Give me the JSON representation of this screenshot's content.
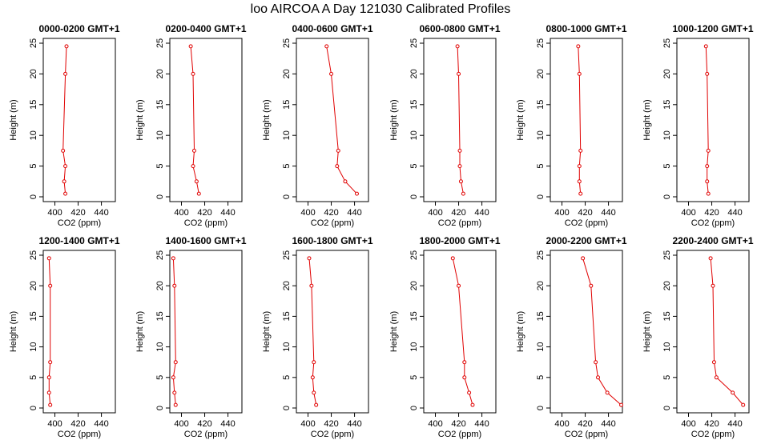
{
  "title": "loo AIRCOA A  Day 121030  Calibrated Profiles",
  "chart_data": [
    {
      "type": "line",
      "title": "0000-0200 GMT+1",
      "xlabel": "CO2 (ppm)",
      "ylabel": "Height (m)",
      "xlim": [
        390,
        452
      ],
      "ylim": [
        0,
        25
      ],
      "xticks": [
        400,
        420,
        440
      ],
      "yticks": [
        0,
        5,
        10,
        15,
        20,
        25
      ],
      "grid": false,
      "series": [
        {
          "color": "#e00000",
          "x": [
            409,
            408,
            409,
            407,
            409,
            410
          ],
          "y": [
            0.5,
            2.5,
            5,
            7.5,
            20,
            24.5
          ]
        }
      ]
    },
    {
      "type": "line",
      "title": "0200-0400 GMT+1",
      "xlabel": "CO2 (ppm)",
      "ylabel": "Height (m)",
      "xlim": [
        390,
        452
      ],
      "ylim": [
        0,
        25
      ],
      "xticks": [
        400,
        420,
        440
      ],
      "yticks": [
        0,
        5,
        10,
        15,
        20,
        25
      ],
      "grid": false,
      "series": [
        {
          "color": "#e00000",
          "x": [
            415,
            413,
            410,
            411,
            410,
            408
          ],
          "y": [
            0.5,
            2.5,
            5,
            7.5,
            20,
            24.5
          ]
        }
      ]
    },
    {
      "type": "line",
      "title": "0400-0600 GMT+1",
      "xlabel": "CO2 (ppm)",
      "ylabel": "Height (m)",
      "xlim": [
        390,
        452
      ],
      "ylim": [
        0,
        25
      ],
      "xticks": [
        400,
        420,
        440
      ],
      "yticks": [
        0,
        5,
        10,
        15,
        20,
        25
      ],
      "grid": false,
      "series": [
        {
          "color": "#e00000",
          "x": [
            442,
            432,
            425,
            426,
            420,
            416
          ],
          "y": [
            0.5,
            2.5,
            5,
            7.5,
            20,
            24.5
          ]
        }
      ]
    },
    {
      "type": "line",
      "title": "0600-0800 GMT+1",
      "xlabel": "CO2 (ppm)",
      "ylabel": "Height (m)",
      "xlim": [
        390,
        452
      ],
      "ylim": [
        0,
        25
      ],
      "xticks": [
        400,
        420,
        440
      ],
      "yticks": [
        0,
        5,
        10,
        15,
        20,
        25
      ],
      "grid": false,
      "series": [
        {
          "color": "#e00000",
          "x": [
            424,
            422,
            421,
            421,
            420,
            419
          ],
          "y": [
            0.5,
            2.5,
            5,
            7.5,
            20,
            24.5
          ]
        }
      ]
    },
    {
      "type": "line",
      "title": "0800-1000 GMT+1",
      "xlabel": "CO2 (ppm)",
      "ylabel": "Height (m)",
      "xlim": [
        390,
        452
      ],
      "ylim": [
        0,
        25
      ],
      "xticks": [
        400,
        420,
        440
      ],
      "yticks": [
        0,
        5,
        10,
        15,
        20,
        25
      ],
      "grid": false,
      "series": [
        {
          "color": "#e00000",
          "x": [
            416,
            415,
            415,
            416,
            415,
            414
          ],
          "y": [
            0.5,
            2.5,
            5,
            7.5,
            20,
            24.5
          ]
        }
      ]
    },
    {
      "type": "line",
      "title": "1000-1200 GMT+1",
      "xlabel": "CO2 (ppm)",
      "ylabel": "Height (m)",
      "xlim": [
        390,
        452
      ],
      "ylim": [
        0,
        25
      ],
      "xticks": [
        400,
        420,
        440
      ],
      "yticks": [
        0,
        5,
        10,
        15,
        20,
        25
      ],
      "grid": false,
      "series": [
        {
          "color": "#e00000",
          "x": [
            417,
            416,
            416,
            417,
            416,
            415
          ],
          "y": [
            0.5,
            2.5,
            5,
            7.5,
            20,
            24.5
          ]
        }
      ]
    },
    {
      "type": "line",
      "title": "1200-1400 GMT+1",
      "xlabel": "CO2 (ppm)",
      "ylabel": "Height (m)",
      "xlim": [
        390,
        452
      ],
      "ylim": [
        0,
        25
      ],
      "xticks": [
        400,
        420,
        440
      ],
      "yticks": [
        0,
        5,
        10,
        15,
        20,
        25
      ],
      "grid": false,
      "series": [
        {
          "color": "#e00000",
          "x": [
            396,
            395,
            395,
            396,
            396,
            395
          ],
          "y": [
            0.5,
            2.5,
            5,
            7.5,
            20,
            24.5
          ]
        }
      ]
    },
    {
      "type": "line",
      "title": "1400-1600 GMT+1",
      "xlabel": "CO2 (ppm)",
      "ylabel": "Height (m)",
      "xlim": [
        390,
        452
      ],
      "ylim": [
        0,
        25
      ],
      "xticks": [
        400,
        420,
        440
      ],
      "yticks": [
        0,
        5,
        10,
        15,
        20,
        25
      ],
      "grid": false,
      "series": [
        {
          "color": "#e00000",
          "x": [
            395,
            394,
            393,
            395,
            394,
            393
          ],
          "y": [
            0.5,
            2.5,
            5,
            7.5,
            20,
            24.5
          ]
        }
      ]
    },
    {
      "type": "line",
      "title": "1600-1800 GMT+1",
      "xlabel": "CO2 (ppm)",
      "ylabel": "Height (m)",
      "xlim": [
        390,
        452
      ],
      "ylim": [
        0,
        25
      ],
      "xticks": [
        400,
        420,
        440
      ],
      "yticks": [
        0,
        5,
        10,
        15,
        20,
        25
      ],
      "grid": false,
      "series": [
        {
          "color": "#e00000",
          "x": [
            407,
            405,
            404,
            405,
            403,
            401
          ],
          "y": [
            0.5,
            2.5,
            5,
            7.5,
            20,
            24.5
          ]
        }
      ]
    },
    {
      "type": "line",
      "title": "1800-2000 GMT+1",
      "xlabel": "CO2 (ppm)",
      "ylabel": "Height (m)",
      "xlim": [
        390,
        452
      ],
      "ylim": [
        0,
        25
      ],
      "xticks": [
        400,
        420,
        440
      ],
      "yticks": [
        0,
        5,
        10,
        15,
        20,
        25
      ],
      "grid": false,
      "series": [
        {
          "color": "#e00000",
          "x": [
            432,
            429,
            425,
            425,
            420,
            415
          ],
          "y": [
            0.5,
            2.5,
            5,
            7.5,
            20,
            24.5
          ]
        }
      ]
    },
    {
      "type": "line",
      "title": "2000-2200 GMT+1",
      "xlabel": "CO2 (ppm)",
      "ylabel": "Height (m)",
      "xlim": [
        390,
        452
      ],
      "ylim": [
        0,
        25
      ],
      "xticks": [
        400,
        420,
        440
      ],
      "yticks": [
        0,
        5,
        10,
        15,
        20,
        25
      ],
      "grid": false,
      "series": [
        {
          "color": "#e00000",
          "x": [
            451,
            439,
            431,
            429,
            425,
            418
          ],
          "y": [
            0.5,
            2.5,
            5,
            7.5,
            20,
            24.5
          ]
        }
      ]
    },
    {
      "type": "line",
      "title": "2200-2400 GMT+1",
      "xlabel": "CO2 (ppm)",
      "ylabel": "Height (m)",
      "xlim": [
        390,
        452
      ],
      "ylim": [
        0,
        25
      ],
      "xticks": [
        400,
        420,
        440
      ],
      "yticks": [
        0,
        5,
        10,
        15,
        20,
        25
      ],
      "grid": false,
      "series": [
        {
          "color": "#e00000",
          "x": [
            447,
            438,
            424,
            422,
            421,
            419
          ],
          "y": [
            0.5,
            2.5,
            5,
            7.5,
            20,
            24.5
          ]
        }
      ]
    }
  ]
}
